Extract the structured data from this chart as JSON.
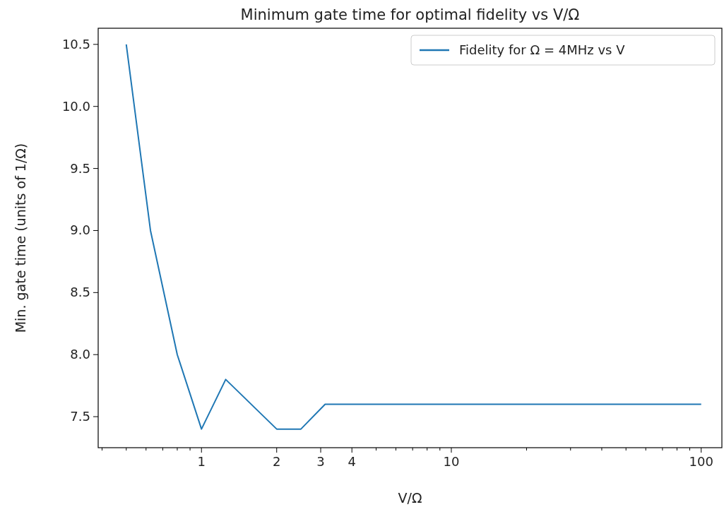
{
  "chart_data": {
    "type": "line",
    "title": "Minimum gate time for optimal fidelity vs V/Ω",
    "xlabel": "V/Ω",
    "ylabel": "Min. gate time (units of 1/Ω)",
    "log": "x",
    "grid": false,
    "legend": "top right",
    "marker": "none",
    "line_style": "solid",
    "xlim": [
      0.386,
      121
    ],
    "ylim": [
      7.25,
      10.63
    ],
    "xticks": [
      {
        "value": 0.4,
        "label": null
      },
      {
        "value": 0.5,
        "label": null
      },
      {
        "value": 0.6,
        "label": null
      },
      {
        "value": 0.7,
        "label": null
      },
      {
        "value": 0.8,
        "label": null
      },
      {
        "value": 0.9,
        "label": null
      },
      1,
      2,
      3,
      4,
      {
        "value": 5,
        "label": null
      },
      {
        "value": 6,
        "label": null
      },
      {
        "value": 7,
        "label": null
      },
      {
        "value": 8,
        "label": null
      },
      {
        "value": 9,
        "label": null
      },
      10,
      {
        "value": 20,
        "label": null
      },
      {
        "value": 30,
        "label": null
      },
      {
        "value": 40,
        "label": null
      },
      {
        "value": 50,
        "label": null
      },
      {
        "value": 60,
        "label": null
      },
      {
        "value": 70,
        "label": null
      },
      {
        "value": 80,
        "label": null
      },
      {
        "value": 90,
        "label": null
      },
      100
    ],
    "yticks": [
      {
        "value": 7.5,
        "label": "7.5"
      },
      {
        "value": 8,
        "label": "8.0"
      },
      {
        "value": 8.5,
        "label": "8.5"
      },
      {
        "value": 9,
        "label": "9.0"
      },
      {
        "value": 9.5,
        "label": "9.5"
      },
      {
        "value": 10,
        "label": "10.0"
      },
      {
        "value": 10.5,
        "label": "10.5"
      }
    ],
    "series": [
      {
        "name": "Fidelity for Ω = 4MHz vs V",
        "color": "#1f77b4",
        "x": [
          0.5,
          0.625,
          0.8,
          1,
          1.25,
          2,
          2.5,
          3.125,
          100
        ],
        "values": [
          10.5,
          9.0,
          8.0,
          7.4,
          7.8,
          7.4,
          7.4,
          7.6,
          7.6
        ]
      }
    ]
  }
}
